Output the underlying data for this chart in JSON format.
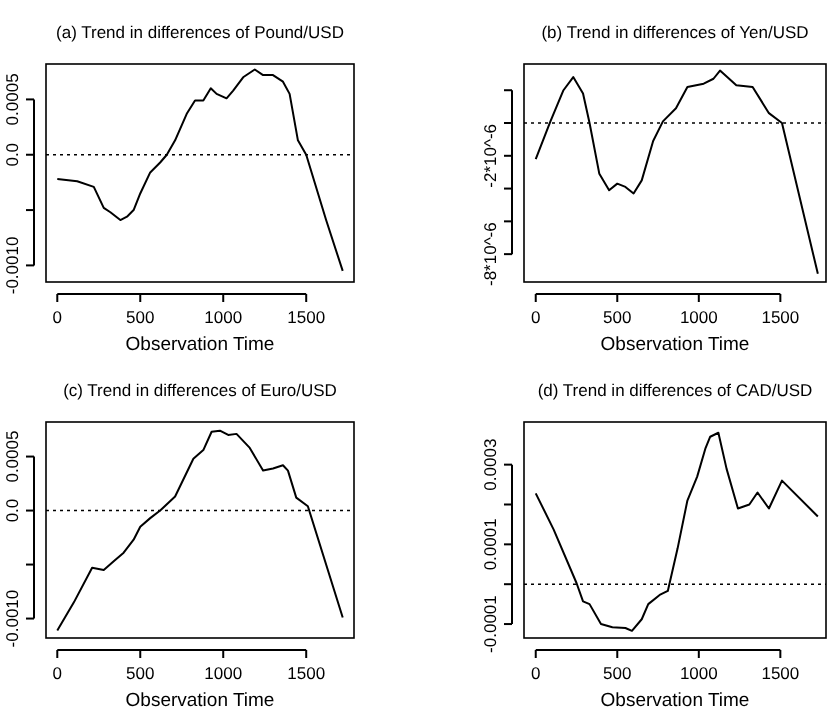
{
  "chart_data": [
    {
      "type": "line",
      "title": "(a) Trend in differences of Pound/USD",
      "xlabel": "Observation Time",
      "xlim": [
        -68,
        1788
      ],
      "xticks": [
        0,
        500,
        1000,
        1500
      ],
      "ylim": [
        -0.00115,
        0.00082
      ],
      "yticks": [
        {
          "value": -0.001,
          "label": "-0.0010"
        },
        {
          "value": -0.0005,
          "label": null
        },
        {
          "value": 0,
          "label": "0.0"
        },
        {
          "value": 0.0005,
          "label": "0.0005"
        }
      ],
      "ref_lines": [
        {
          "axis": "y",
          "value": 0,
          "line_style": "dotted"
        }
      ],
      "line_style": "solid",
      "series": [
        {
          "color": "#000000",
          "x": [
            0,
            120,
            220,
            280,
            320,
            380,
            420,
            460,
            500,
            560,
            620,
            660,
            710,
            780,
            830,
            880,
            925,
            960,
            1020,
            1060,
            1120,
            1190,
            1240,
            1300,
            1360,
            1400,
            1450,
            1500,
            1620,
            1720
          ],
          "values": [
            -0.00022,
            -0.00024,
            -0.00029,
            -0.00048,
            -0.00052,
            -0.00059,
            -0.00056,
            -0.0005,
            -0.00035,
            -0.00016,
            -7e-05,
            0,
            0.00013,
            0.00037,
            0.00049,
            0.00049,
            0.0006,
            0.00055,
            0.00051,
            0.00058,
            0.0007,
            0.00077,
            0.00072,
            0.00072,
            0.00066,
            0.00055,
            0.00013,
            0,
            -0.00059,
            -0.00105
          ]
        }
      ]
    },
    {
      "type": "line",
      "title": "(b) Trend in differences of Yen/USD",
      "xlabel": "Observation Time",
      "xlim": [
        -72,
        1780
      ],
      "xticks": [
        0,
        500,
        1000,
        1500
      ],
      "ylim": [
        -9.7e-06,
        3.6e-06
      ],
      "yticks": [
        {
          "value": -8e-06,
          "label": "-8*10^-6"
        },
        {
          "value": -6e-06,
          "label": null
        },
        {
          "value": -4e-06,
          "label": null
        },
        {
          "value": -2e-06,
          "label": "-2*10^-6"
        },
        {
          "value": 0,
          "label": null
        },
        {
          "value": 2e-06,
          "label": null
        }
      ],
      "ref_lines": [
        {
          "axis": "y",
          "value": 0,
          "line_style": "dotted"
        }
      ],
      "line_style": "solid",
      "series": [
        {
          "color": "#000000",
          "x": [
            0,
            90,
            170,
            230,
            290,
            330,
            390,
            450,
            500,
            550,
            600,
            650,
            720,
            780,
            860,
            930,
            1030,
            1090,
            1130,
            1230,
            1330,
            1430,
            1510,
            1730
          ],
          "values": [
            -2.2e-06,
            1e-07,
            2e-06,
            2.8e-06,
            1.8e-06,
            0,
            -3.1e-06,
            -4.1e-06,
            -3.7e-06,
            -3.9e-06,
            -4.3e-06,
            -3.5e-06,
            -1.1e-06,
            1e-07,
            9e-07,
            2.2e-06,
            2.4e-06,
            2.7e-06,
            3.2e-06,
            2.3e-06,
            2.2e-06,
            6e-07,
            0,
            -9.2e-06
          ]
        }
      ]
    },
    {
      "type": "line",
      "title": "(c) Trend in differences of Euro/USD",
      "xlabel": "Observation Time",
      "xlim": [
        -68,
        1788
      ],
      "xticks": [
        0,
        500,
        1000,
        1500
      ],
      "ylim": [
        -0.00118,
        0.00082
      ],
      "yticks": [
        {
          "value": -0.001,
          "label": "-0.0010"
        },
        {
          "value": -0.0005,
          "label": null
        },
        {
          "value": 0,
          "label": "0.0"
        },
        {
          "value": 0.0005,
          "label": "0.0005"
        }
      ],
      "ref_lines": [
        {
          "axis": "y",
          "value": 0,
          "line_style": "dotted"
        }
      ],
      "line_style": "solid",
      "series": [
        {
          "color": "#000000",
          "x": [
            0,
            100,
            210,
            280,
            340,
            400,
            460,
            500,
            560,
            620,
            710,
            820,
            880,
            930,
            980,
            1030,
            1080,
            1160,
            1240,
            1300,
            1360,
            1390,
            1440,
            1510,
            1720
          ],
          "values": [
            -0.00111,
            -0.00085,
            -0.00053,
            -0.00055,
            -0.00047,
            -0.00039,
            -0.00027,
            -0.00015,
            -7e-05,
            0,
            0.00013,
            0.00048,
            0.00056,
            0.00073,
            0.00074,
            0.0007,
            0.00071,
            0.00058,
            0.00037,
            0.00039,
            0.00042,
            0.00037,
            0.00012,
            4e-05,
            -0.00099
          ]
        }
      ]
    },
    {
      "type": "line",
      "title": "(d) Trend in differences of CAD/USD",
      "xlabel": "Observation Time",
      "xlim": [
        -72,
        1780
      ],
      "xticks": [
        0,
        500,
        1000,
        1500
      ],
      "ylim": [
        -0.000135,
        0.000407
      ],
      "yticks": [
        {
          "value": -0.0001,
          "label": "-0.0001"
        },
        {
          "value": 0,
          "label": null
        },
        {
          "value": 0.0001,
          "label": "0.0001"
        },
        {
          "value": 0.0002,
          "label": null
        },
        {
          "value": 0.0003,
          "label": "0.0003"
        }
      ],
      "ref_lines": [
        {
          "axis": "y",
          "value": 0,
          "line_style": "dotted"
        }
      ],
      "line_style": "solid",
      "series": [
        {
          "color": "#000000",
          "x": [
            0,
            110,
            250,
            290,
            330,
            400,
            470,
            550,
            590,
            650,
            690,
            760,
            810,
            870,
            930,
            990,
            1040,
            1070,
            1120,
            1170,
            1240,
            1310,
            1360,
            1430,
            1510,
            1730
          ],
          "values": [
            0.000228,
            0.000137,
            3e-06,
            -4.3e-05,
            -5e-05,
            -0.0001,
            -0.000108,
            -0.00011,
            -0.000117,
            -8.8e-05,
            -5e-05,
            -2.7e-05,
            -1.7e-05,
            9e-05,
            0.00021,
            0.00027,
            0.00034,
            0.00037,
            0.00038,
            0.00029,
            0.00019,
            0.0002,
            0.00023,
            0.00019,
            0.00026,
            0.00017
          ]
        }
      ]
    }
  ]
}
